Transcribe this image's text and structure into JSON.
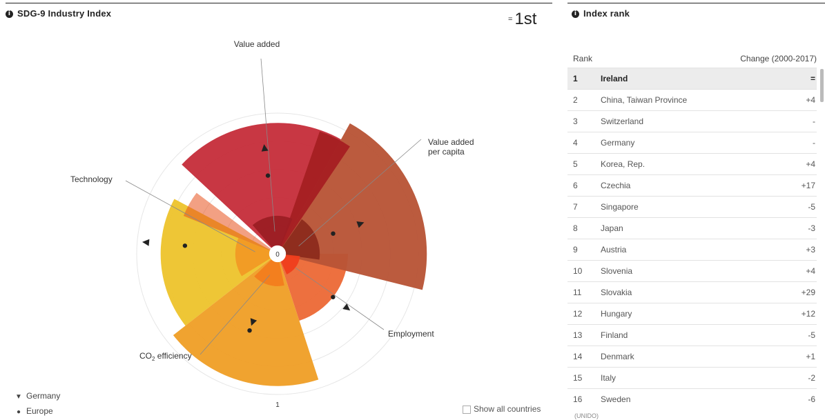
{
  "left": {
    "title": "SDG-9 Industry Index",
    "rank_eq": "=",
    "rank_value": "1st",
    "legend": [
      {
        "marker": "triangle",
        "label": "Germany"
      },
      {
        "marker": "dot",
        "label": "Europe"
      }
    ],
    "show_all_label": "Show all countries"
  },
  "chart_data": {
    "type": "radial-bar",
    "title": "SDG-9 Industry Index",
    "scale_labels": {
      "center": "0",
      "outer": "1"
    },
    "categories": [
      "Value added",
      "Value added per capita",
      "Employment",
      "CO₂ efficiency",
      "Technology"
    ],
    "category_labels": [
      {
        "lines": [
          "Value added"
        ]
      },
      {
        "lines": [
          "Value added",
          "per capita"
        ]
      },
      {
        "lines": [
          "Employment"
        ]
      },
      {
        "lines": [
          "CO",
          "efficiency"
        ],
        "subscript": "2"
      },
      {
        "lines": [
          "Technology"
        ]
      }
    ],
    "series": [
      {
        "name": "Ireland",
        "values": [
          {
            "main": 0.93,
            "inner": 0.27,
            "accent": 0.92
          },
          {
            "main": 1.06,
            "inner": 0.3
          },
          {
            "main": 0.5,
            "inner": 0.16
          },
          {
            "main": 0.94,
            "inner": 0.23
          },
          {
            "main": 0.83,
            "inner": 0.3,
            "accent": 0.72
          }
        ]
      },
      {
        "name": "Germany",
        "values": [
          0.76,
          0.63,
          0.63,
          0.52,
          0.94
        ]
      },
      {
        "name": "Europe",
        "values": [
          0.56,
          0.42,
          0.5,
          0.58,
          0.66
        ]
      }
    ],
    "colors": {
      "value_added": "#c62f3b",
      "value_added_inner": "#9c1e24",
      "value_added_accent": "#a51f22",
      "per_capita": "#b85436",
      "per_capita_inner": "#8c2b1c",
      "employment": "#ec6a37",
      "employment_inner": "#f03d1c",
      "co2": "#ef9f28",
      "co2_inner": "#f27d1e",
      "technology": "#edc42e",
      "technology_inner": "#f19a25",
      "technology_accent": "#e8521e"
    }
  },
  "right": {
    "title": "Index rank",
    "col_rank": "Rank",
    "col_change": "Change (2000-2017)",
    "rows": [
      {
        "rank": "1",
        "name": "Ireland",
        "change": "="
      },
      {
        "rank": "2",
        "name": "China, Taiwan Province",
        "change": "+4"
      },
      {
        "rank": "3",
        "name": "Switzerland",
        "change": "-"
      },
      {
        "rank": "4",
        "name": "Germany",
        "change": "-"
      },
      {
        "rank": "5",
        "name": "Korea, Rep.",
        "change": "+4"
      },
      {
        "rank": "6",
        "name": "Czechia",
        "change": "+17"
      },
      {
        "rank": "7",
        "name": "Singapore",
        "change": "-5"
      },
      {
        "rank": "8",
        "name": "Japan",
        "change": "-3"
      },
      {
        "rank": "9",
        "name": "Austria",
        "change": "+3"
      },
      {
        "rank": "10",
        "name": "Slovenia",
        "change": "+4"
      },
      {
        "rank": "11",
        "name": "Slovakia",
        "change": "+29"
      },
      {
        "rank": "12",
        "name": "Hungary",
        "change": "+12"
      },
      {
        "rank": "13",
        "name": "Finland",
        "change": "-5"
      },
      {
        "rank": "14",
        "name": "Denmark",
        "change": "+1"
      },
      {
        "rank": "15",
        "name": "Italy",
        "change": "-2"
      },
      {
        "rank": "16",
        "name": "Sweden",
        "change": "-6"
      }
    ],
    "source": "(UNIDO)"
  }
}
